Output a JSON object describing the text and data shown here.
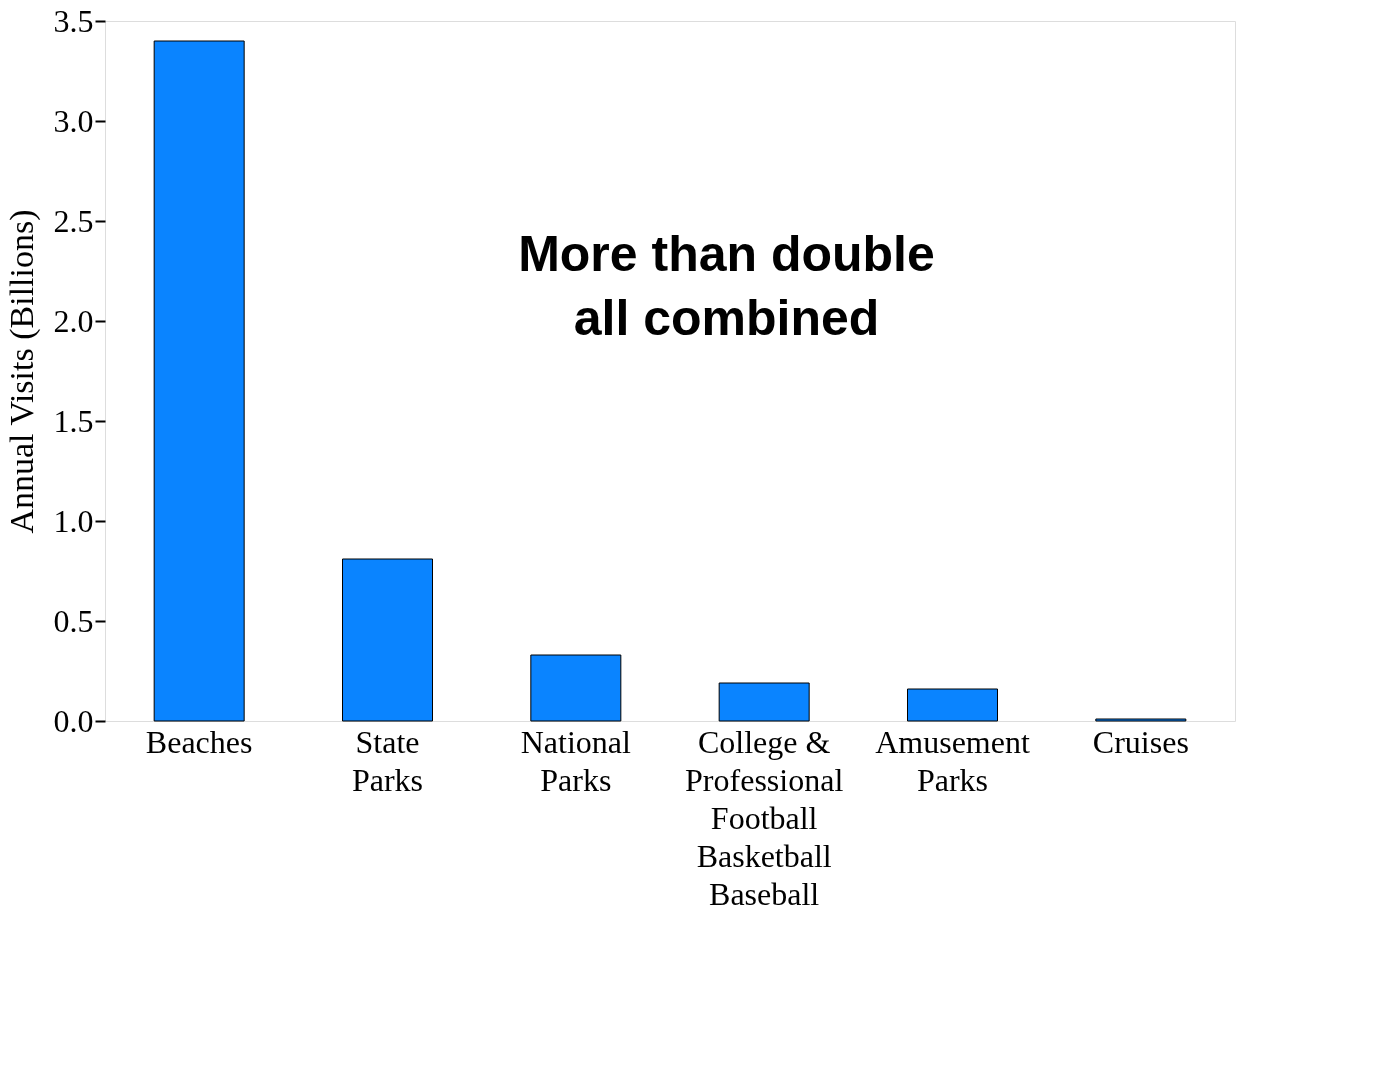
{
  "chart_data": {
    "type": "bar",
    "ylabel": "Annual Visits (Billions)",
    "categories": [
      "Beaches",
      "State\nParks",
      "National\nParks",
      "College &\nProfessional\nFootball\nBasketball\nBaseball",
      "Amusement\nParks",
      "Cruises"
    ],
    "values": [
      3.4,
      0.81,
      0.33,
      0.19,
      0.16,
      0.01
    ],
    "color": "#0a84ff",
    "ylim": [
      0,
      3.5
    ],
    "yticks": [
      {
        "value": 0,
        "label": "0.0"
      },
      {
        "value": 0.5,
        "label": "0.5"
      },
      {
        "value": 1,
        "label": "1.0"
      },
      {
        "value": 1.5,
        "label": "1.5"
      },
      {
        "value": 2,
        "label": "2.0"
      },
      {
        "value": 2.5,
        "label": "2.5"
      },
      {
        "value": 3,
        "label": "3.0"
      },
      {
        "value": 3.5,
        "label": "3.5"
      }
    ],
    "grid": false,
    "annotations": [
      "More than double\nall combined"
    ]
  }
}
